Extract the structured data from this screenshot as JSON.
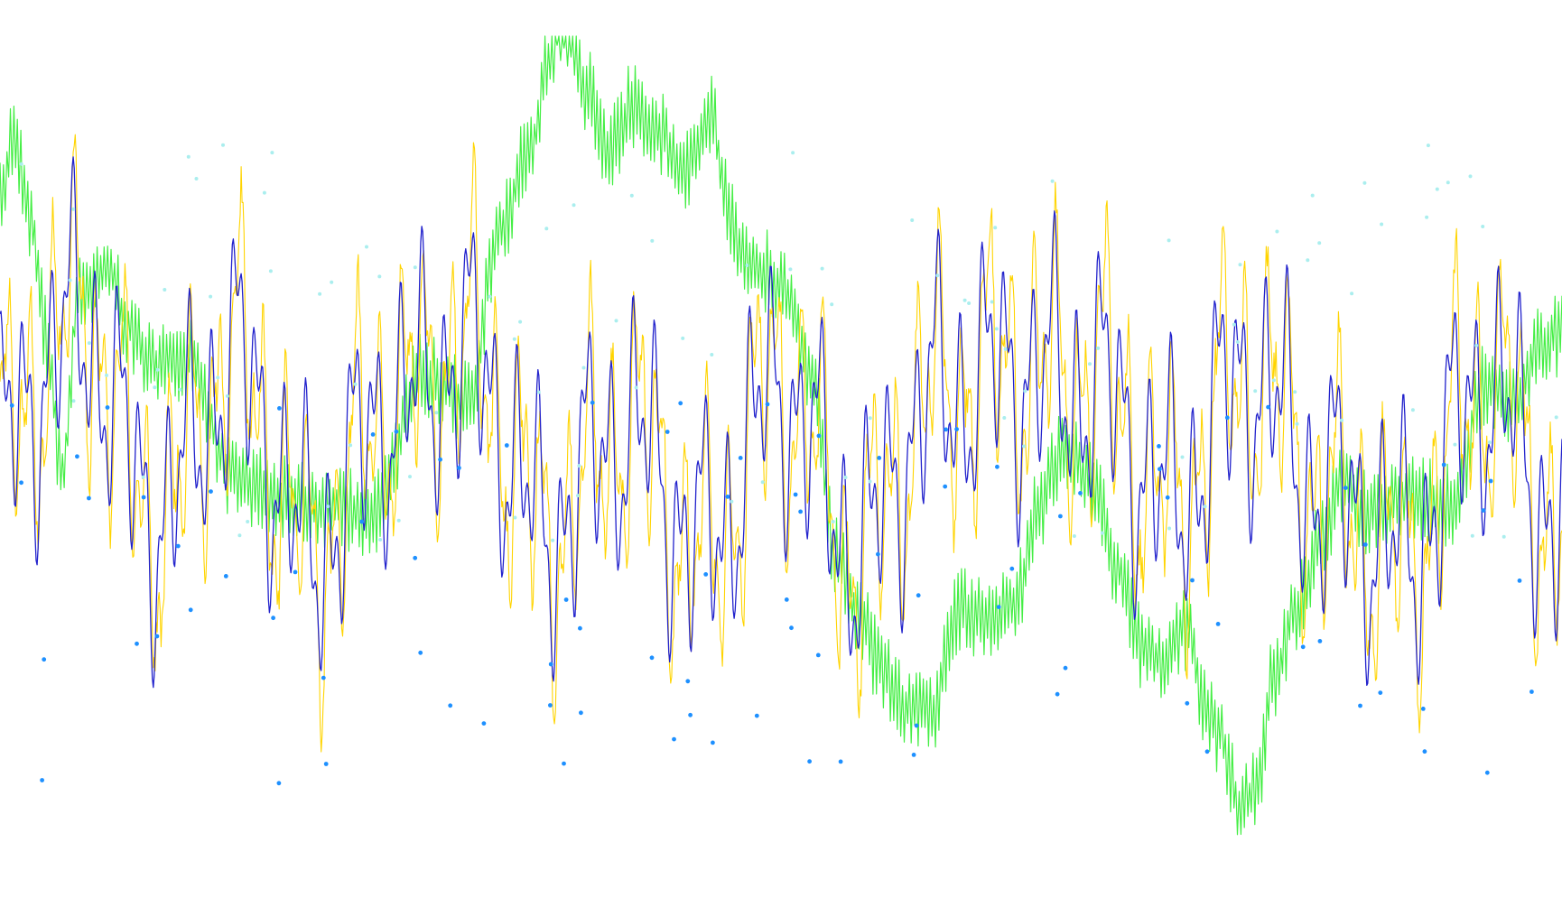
{
  "chart_data": {
    "type": "line",
    "title": "",
    "xlabel": "",
    "ylabel": "",
    "grid": false,
    "legend": "none",
    "x_range": [
      0,
      1000
    ],
    "y_range": [
      -4.8,
      4.8
    ],
    "series": [
      {
        "key": "oscillator-raw",
        "kind": "line",
        "color": "#ffd400",
        "generator": "oscillator-noise",
        "points": [
          [
            0,
            0.2
          ],
          [
            50,
            4.9
          ],
          [
            100,
            -2.2
          ],
          [
            150,
            3.2
          ],
          [
            200,
            -3.4
          ],
          [
            250,
            1.8
          ],
          [
            300,
            3.6
          ],
          [
            350,
            -2.8
          ],
          [
            400,
            1.0
          ],
          [
            450,
            -3.5
          ],
          [
            500,
            2.4
          ],
          [
            550,
            -3.4
          ],
          [
            600,
            2.2
          ],
          [
            650,
            3.0
          ],
          [
            700,
            2.6
          ],
          [
            750,
            -1.7
          ],
          [
            800,
            2.9
          ],
          [
            850,
            -1.5
          ],
          [
            900,
            -3.6
          ],
          [
            950,
            2.6
          ],
          [
            1000,
            -2.6
          ]
        ]
      },
      {
        "key": "oscillator-smoothed",
        "kind": "line",
        "color": "#2222cc",
        "generator": "oscillator",
        "points": [
          [
            0,
            0.2
          ],
          [
            50,
            4.3
          ],
          [
            100,
            -2.0
          ],
          [
            150,
            2.9
          ],
          [
            200,
            -3.1
          ],
          [
            250,
            1.6
          ],
          [
            300,
            3.2
          ],
          [
            350,
            -2.5
          ],
          [
            400,
            0.9
          ],
          [
            450,
            -3.0
          ],
          [
            500,
            2.1
          ],
          [
            550,
            -3.1
          ],
          [
            600,
            2.0
          ],
          [
            650,
            2.7
          ],
          [
            700,
            2.3
          ],
          [
            750,
            -1.5
          ],
          [
            800,
            2.6
          ],
          [
            850,
            -1.3
          ],
          [
            900,
            -3.3
          ],
          [
            950,
            2.3
          ],
          [
            1000,
            -2.3
          ]
        ]
      },
      {
        "key": "trend",
        "kind": "line",
        "color": "#44ee44",
        "generator": "trend-fuzz",
        "points": [
          [
            0,
            3.1
          ],
          [
            10,
            3.6
          ],
          [
            20,
            2.6
          ],
          [
            30,
            1.3
          ],
          [
            40,
            -0.3
          ],
          [
            50,
            1.8
          ],
          [
            70,
            2.2
          ],
          [
            80,
            1.5
          ],
          [
            100,
            1.0
          ],
          [
            120,
            1.1
          ],
          [
            150,
            -0.3
          ],
          [
            180,
            -0.5
          ],
          [
            210,
            -0.6
          ],
          [
            240,
            -0.7
          ],
          [
            270,
            0.9
          ],
          [
            300,
            0.6
          ],
          [
            320,
            2.6
          ],
          [
            340,
            3.5
          ],
          [
            350,
            4.4
          ],
          [
            360,
            5.0
          ],
          [
            375,
            4.2
          ],
          [
            390,
            3.5
          ],
          [
            405,
            4.0
          ],
          [
            420,
            3.7
          ],
          [
            440,
            3.3
          ],
          [
            455,
            3.9
          ],
          [
            465,
            2.9
          ],
          [
            475,
            2.3
          ],
          [
            490,
            2.1
          ],
          [
            505,
            1.8
          ],
          [
            520,
            0.8
          ],
          [
            535,
            -1.2
          ],
          [
            550,
            -1.9
          ],
          [
            565,
            -2.5
          ],
          [
            580,
            -2.9
          ],
          [
            595,
            -3.0
          ],
          [
            615,
            -1.8
          ],
          [
            630,
            -1.9
          ],
          [
            650,
            -1.7
          ],
          [
            665,
            -0.6
          ],
          [
            680,
            0.0
          ],
          [
            700,
            -0.3
          ],
          [
            715,
            -1.3
          ],
          [
            730,
            -2.2
          ],
          [
            745,
            -2.4
          ],
          [
            760,
            -2.0
          ],
          [
            770,
            -2.8
          ],
          [
            780,
            -3.2
          ],
          [
            795,
            -4.1
          ],
          [
            805,
            -3.8
          ],
          [
            815,
            -2.6
          ],
          [
            830,
            -1.8
          ],
          [
            845,
            -1.0
          ],
          [
            860,
            -0.3
          ],
          [
            875,
            -0.7
          ],
          [
            900,
            -0.5
          ],
          [
            930,
            -0.6
          ],
          [
            950,
            0.8
          ],
          [
            970,
            0.6
          ],
          [
            985,
            1.2
          ],
          [
            1000,
            1.4
          ]
        ]
      },
      {
        "key": "signal-dots",
        "kind": "scatter",
        "color": "#1e90ff",
        "radius": 2.4,
        "count": 95,
        "seed": 7,
        "y_band": [
          -3.8,
          0.6
        ]
      },
      {
        "key": "faint-dots",
        "kind": "scatter",
        "color": "#aaeeee",
        "radius": 2.0,
        "count": 110,
        "seed": 19,
        "y_band": [
          -1.0,
          3.6
        ]
      }
    ]
  }
}
